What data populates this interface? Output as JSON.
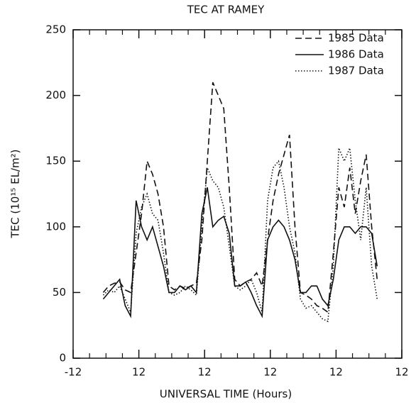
{
  "chart_data": {
    "type": "line",
    "title": "TEC AT RAMEY",
    "x_label": "UNIVERSAL TIME (Hours)",
    "y_label": "TEC (10¹⁵ EL/m²)",
    "xlim": [
      -12,
      108
    ],
    "ylim": [
      0,
      250
    ],
    "xticks": [
      -12,
      12,
      {
        "value": 36,
        "label": "12"
      },
      {
        "value": 60,
        "label": "12"
      },
      {
        "value": 84,
        "label": "12"
      },
      {
        "value": 108,
        "label": "12"
      }
    ],
    "yticks": [
      0,
      50,
      100,
      150,
      200,
      250
    ],
    "legend": "top-right",
    "x": [
      -1,
      1,
      3,
      5,
      7,
      9,
      11,
      13,
      15,
      17,
      19,
      21,
      23,
      25,
      27,
      29,
      31,
      33,
      35,
      37,
      39,
      41,
      43,
      45,
      47,
      49,
      51,
      53,
      55,
      57,
      59,
      61,
      63,
      65,
      67,
      69,
      71,
      73,
      75,
      77,
      79,
      81,
      83,
      85,
      87,
      89,
      91,
      93,
      95,
      97,
      99
    ],
    "series": [
      {
        "name": "1985 Data",
        "color": "#111111",
        "dash": "dashed",
        "values": [
          50,
          55,
          57,
          58,
          52,
          50,
          80,
          110,
          150,
          140,
          125,
          100,
          55,
          52,
          55,
          53,
          55,
          57,
          90,
          150,
          210,
          200,
          190,
          130,
          60,
          55,
          58,
          60,
          65,
          55,
          90,
          120,
          140,
          155,
          170,
          100,
          50,
          48,
          45,
          40,
          38,
          35,
          80,
          130,
          115,
          145,
          110,
          135,
          155,
          100,
          60
        ]
      },
      {
        "name": "1986 Data",
        "color": "#111111",
        "dash": "solid",
        "values": [
          45,
          50,
          55,
          60,
          40,
          32,
          120,
          100,
          90,
          100,
          85,
          70,
          50,
          50,
          55,
          52,
          55,
          50,
          110,
          130,
          100,
          105,
          108,
          95,
          55,
          55,
          58,
          50,
          40,
          32,
          90,
          100,
          105,
          100,
          90,
          75,
          50,
          50,
          55,
          55,
          45,
          40,
          60,
          90,
          100,
          100,
          95,
          100,
          100,
          95,
          70
        ]
      },
      {
        "name": "1987 Data",
        "color": "#111111",
        "dash": "dotted",
        "values": [
          48,
          52,
          50,
          55,
          45,
          35,
          95,
          115,
          125,
          110,
          105,
          80,
          50,
          48,
          50,
          55,
          52,
          48,
          100,
          145,
          135,
          130,
          115,
          85,
          55,
          52,
          55,
          60,
          50,
          35,
          120,
          145,
          150,
          130,
          100,
          80,
          45,
          38,
          40,
          35,
          30,
          28,
          70,
          160,
          150,
          160,
          120,
          90,
          130,
          70,
          45
        ]
      }
    ]
  }
}
